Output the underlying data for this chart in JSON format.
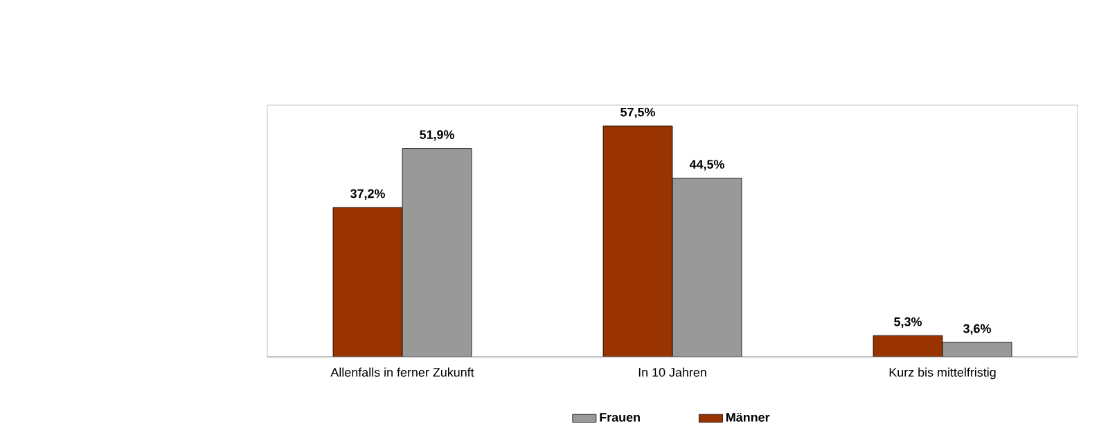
{
  "chart_data": {
    "type": "bar",
    "categories": [
      "Allenfalls in ferner Zukunft",
      "In 10 Jahren",
      "Kurz bis mittelfristig"
    ],
    "series": [
      {
        "name": "Männer",
        "color": "#993300",
        "values": [
          37.2,
          57.5,
          5.3
        ],
        "value_labels": [
          "37,2%",
          "57,5%",
          "5,3%"
        ]
      },
      {
        "name": "Frauen",
        "color": "#999999",
        "values": [
          51.9,
          44.5,
          3.6
        ],
        "value_labels": [
          "51,9%",
          "44,5%",
          "3,6%"
        ]
      }
    ],
    "legend": "bottom"
  }
}
